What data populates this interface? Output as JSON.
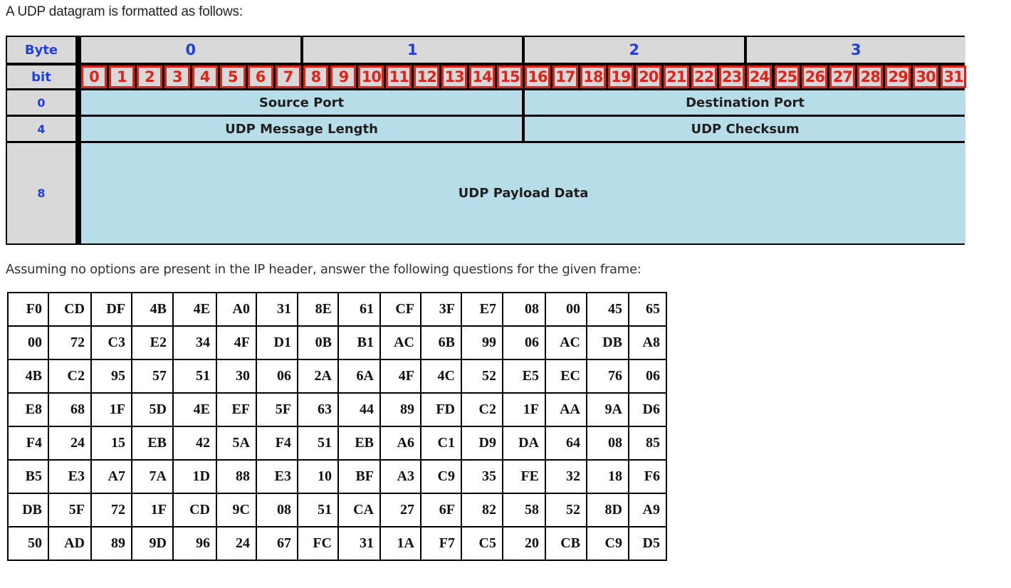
{
  "intro_text": "A UDP datagram is formatted as follows:",
  "question_text": "Assuming no options are present in the IP header, answer the following questions for the given frame:",
  "diagram": {
    "byte_label": "Byte",
    "bit_label": "bit",
    "byte_numbers": [
      "0",
      "1",
      "2",
      "3"
    ],
    "bits": [
      "0",
      "1",
      "2",
      "3",
      "4",
      "5",
      "6",
      "7",
      "8",
      "9",
      "10",
      "11",
      "12",
      "13",
      "14",
      "15",
      "16",
      "17",
      "18",
      "19",
      "20",
      "21",
      "22",
      "23",
      "24",
      "25",
      "26",
      "27",
      "28",
      "29",
      "30",
      "31"
    ],
    "offsets": [
      "0",
      "4",
      "8"
    ],
    "fields": {
      "source_port": "Source Port",
      "destination_port": "Destination Port",
      "message_length": "UDP Message Length",
      "checksum": "UDP Checksum",
      "payload": "UDP Payload Data"
    },
    "colors": {
      "header_gray": "#d9d9d9",
      "field_blue": "#b7dde8",
      "label_blue": "#1f3fe0",
      "bit_red": "#e0241a"
    }
  },
  "frame_rows": [
    [
      "F0",
      "CD",
      "DF",
      "4B",
      "4E",
      "A0",
      "31",
      "8E",
      "61",
      "CF",
      "3F",
      "E7",
      "08",
      "00",
      "45",
      "65"
    ],
    [
      "00",
      "72",
      "C3",
      "E2",
      "34",
      "4F",
      "D1",
      "0B",
      "B1",
      "AC",
      "6B",
      "99",
      "06",
      "AC",
      "DB",
      "A8"
    ],
    [
      "4B",
      "C2",
      "95",
      "57",
      "51",
      "30",
      "06",
      "2A",
      "6A",
      "4F",
      "4C",
      "52",
      "E5",
      "EC",
      "76",
      "06"
    ],
    [
      "E8",
      "68",
      "1F",
      "5D",
      "4E",
      "EF",
      "5F",
      "63",
      "44",
      "89",
      "FD",
      "C2",
      "1F",
      "AA",
      "9A",
      "D6"
    ],
    [
      "F4",
      "24",
      "15",
      "EB",
      "42",
      "5A",
      "F4",
      "51",
      "EB",
      "A6",
      "C1",
      "D9",
      "DA",
      "64",
      "08",
      "85"
    ],
    [
      "B5",
      "E3",
      "A7",
      "7A",
      "1D",
      "88",
      "E3",
      "10",
      "BF",
      "A3",
      "C9",
      "35",
      "FE",
      "32",
      "18",
      "F6"
    ],
    [
      "DB",
      "5F",
      "72",
      "1F",
      "CD",
      "9C",
      "08",
      "51",
      "CA",
      "27",
      "6F",
      "82",
      "58",
      "52",
      "8D",
      "A9"
    ],
    [
      "50",
      "AD",
      "89",
      "9D",
      "96",
      "24",
      "67",
      "FC",
      "31",
      "1A",
      "F7",
      "C5",
      "20",
      "CB",
      "C9",
      "D5"
    ]
  ]
}
